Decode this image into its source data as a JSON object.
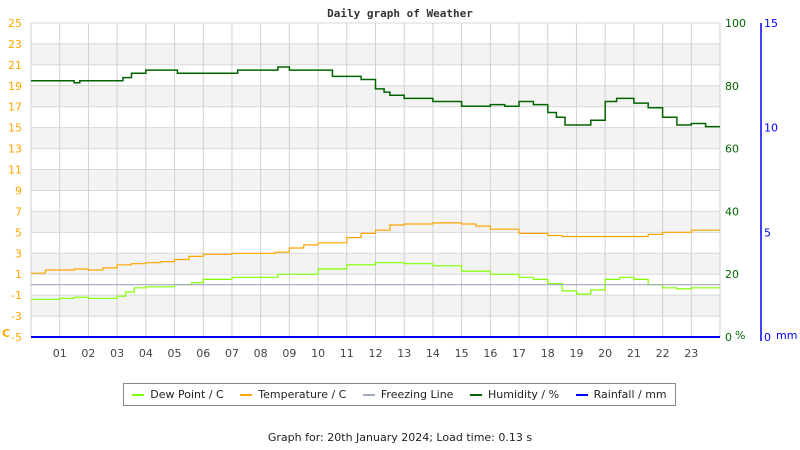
{
  "chart_data": {
    "type": "line",
    "title": "Daily graph of Weather",
    "x_ticks": [
      "01",
      "02",
      "03",
      "04",
      "05",
      "06",
      "07",
      "08",
      "09",
      "10",
      "11",
      "12",
      "13",
      "14",
      "15",
      "16",
      "17",
      "18",
      "19",
      "20",
      "21",
      "22",
      "23"
    ],
    "xlim": [
      0,
      24
    ],
    "left_axis": {
      "unit": "C",
      "ylim": [
        -5,
        25
      ],
      "ticks": [
        25,
        23,
        21,
        19,
        17,
        15,
        13,
        11,
        9,
        7,
        5,
        3,
        1,
        -1,
        -3,
        -5
      ],
      "color": "#ffa500"
    },
    "humidity_axis": {
      "unit": "%",
      "ylim": [
        0,
        100
      ],
      "ticks": [
        100,
        80,
        60,
        40,
        20,
        0
      ],
      "color": "#006400"
    },
    "rain_axis": {
      "unit": "mm",
      "ylim": [
        0,
        15
      ],
      "ticks": [
        15,
        10,
        5,
        0
      ],
      "color": "#0000ff"
    },
    "grid": true,
    "legend_position": "bottom",
    "series": [
      {
        "name": "Dew Point / C",
        "color": "#80ff00",
        "axis": "left",
        "x": [
          0,
          1,
          1.5,
          2,
          3,
          3.3,
          3.6,
          4,
          5,
          5.3,
          5.6,
          6,
          7,
          8,
          8.4,
          8.6,
          9,
          10,
          11,
          12,
          13,
          14,
          15,
          16,
          17,
          17.5,
          18,
          18.5,
          19,
          19.5,
          20,
          20.5,
          21,
          21.5,
          22,
          22.5,
          23,
          24
        ],
        "y": [
          -1.4,
          -1.3,
          -1.2,
          -1.3,
          -1.1,
          -0.7,
          -0.3,
          -0.2,
          0.0,
          0.0,
          0.2,
          0.5,
          0.7,
          0.7,
          0.7,
          1.0,
          1.0,
          1.5,
          1.9,
          2.1,
          2.0,
          1.8,
          1.3,
          1.0,
          0.7,
          0.5,
          0.1,
          -0.6,
          -0.9,
          -0.5,
          0.5,
          0.7,
          0.5,
          0.0,
          -0.3,
          -0.4,
          -0.3,
          -0.3
        ]
      },
      {
        "name": "Temperature / C",
        "color": "#ffa500",
        "axis": "left",
        "x": [
          0,
          0.5,
          1,
          1.5,
          2,
          2.5,
          3,
          3.5,
          4,
          4.5,
          5,
          5.5,
          6,
          7,
          8,
          8.5,
          9,
          9.5,
          10,
          11,
          11.5,
          12,
          12.5,
          13,
          14,
          15,
          15.5,
          16,
          17,
          18,
          18.5,
          19,
          20,
          21,
          21.5,
          22,
          23,
          24
        ],
        "y": [
          1.1,
          1.4,
          1.4,
          1.5,
          1.4,
          1.6,
          1.9,
          2.0,
          2.1,
          2.2,
          2.4,
          2.7,
          2.9,
          3.0,
          3.0,
          3.1,
          3.5,
          3.8,
          4.0,
          4.5,
          4.9,
          5.2,
          5.7,
          5.8,
          5.9,
          5.8,
          5.6,
          5.3,
          4.9,
          4.7,
          4.6,
          4.6,
          4.6,
          4.6,
          4.8,
          5.0,
          5.2,
          5.2
        ]
      },
      {
        "name": "Freezing Line",
        "color": "#a0a8c0",
        "axis": "left",
        "x": [
          0,
          24
        ],
        "y": [
          0,
          0
        ]
      },
      {
        "name": "Humidity / %",
        "color": "#006400",
        "axis": "humidity",
        "x": [
          0,
          1.5,
          1.7,
          3,
          3.2,
          3.5,
          4,
          5,
          5.1,
          7.1,
          7.2,
          8.4,
          8.6,
          9,
          10,
          10.5,
          11,
          11.5,
          12,
          12.3,
          12.5,
          13,
          14,
          15,
          16,
          16.5,
          17,
          17.5,
          18,
          18.3,
          18.6,
          19,
          19.5,
          20,
          20.4,
          21,
          21.5,
          22,
          22.5,
          23,
          23.5,
          24
        ],
        "y": [
          81.6,
          81,
          81.6,
          81.6,
          82.6,
          84,
          85,
          85,
          84,
          84,
          85,
          85,
          86,
          85,
          85,
          83,
          83,
          82,
          79,
          78,
          77,
          76,
          75,
          73.5,
          74,
          73.5,
          75,
          74,
          71.5,
          70,
          67.5,
          67.5,
          69,
          75,
          76,
          74.5,
          73,
          70,
          67.5,
          68,
          67,
          67
        ]
      },
      {
        "name": "Rainfall / mm",
        "color": "#0000ff",
        "axis": "rain",
        "x": [
          0,
          24
        ],
        "y": [
          0,
          0
        ]
      }
    ]
  },
  "footer": "Graph for: 20th January 2024; Load time: 0.13 s"
}
